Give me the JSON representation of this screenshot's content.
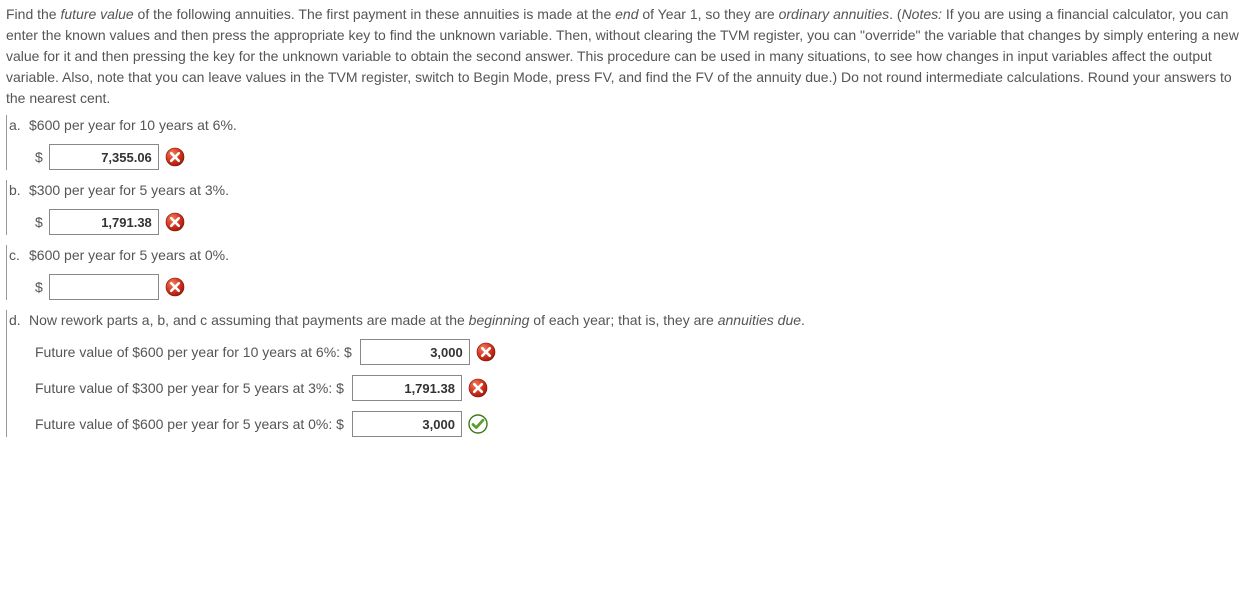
{
  "intro": {
    "seg1": "Find the ",
    "em1": "future value",
    "seg2": " of the following annuities. The first payment in these annuities is made at the ",
    "em2": "end",
    "seg3": " of Year 1, so they are ",
    "em3": "ordinary annuities",
    "seg4": ". (",
    "em_notes": "Notes:",
    "seg5": " If you are using a financial calculator, you can enter the known values and then press the appropriate key to find the unknown variable. Then, without clearing the TVM register, you can \"override\" the variable that changes by simply entering a new value for it and then pressing the key for the unknown variable to obtain the second answer. This procedure can be used in many situations, to see how changes in input variables affect the output variable. Also, note that you can leave values in the TVM register, switch to Begin Mode, press FV, and find the FV of the annuity due.) Do not round intermediate calculations. Round your answers to the nearest cent."
  },
  "questions": {
    "a": {
      "marker": "a.",
      "text": "$600 per year for 10 years at 6%.",
      "currency": "$",
      "value": "7,355.06",
      "status": "wrong"
    },
    "b": {
      "marker": "b.",
      "text": "$300 per year for 5 years at 3%.",
      "currency": "$",
      "value": "1,791.38",
      "status": "wrong"
    },
    "c": {
      "marker": "c.",
      "text": "$600 per year for 5 years at 0%.",
      "currency": "$",
      "value": "",
      "status": "wrong"
    },
    "d": {
      "marker": "d.",
      "seg1": "Now rework parts a, b, and c assuming that payments are made at the ",
      "em1": "beginning",
      "seg2": " of each year; that is, they are ",
      "em2": "annuities due",
      "seg3": ".",
      "rows": [
        {
          "label": "Future value of $600 per year for 10 years at 6%: $",
          "value": "3,000",
          "status": "wrong"
        },
        {
          "label": "Future value of $300 per year for 5 years at 3%: $",
          "value": "1,791.38",
          "status": "wrong"
        },
        {
          "label": "Future value of $600 per year for 5 years at 0%: $",
          "value": "3,000",
          "status": "correct"
        }
      ]
    }
  },
  "colors": {
    "wrong_fill": "#d9341f",
    "wrong_shine": "#f07e57",
    "correct_fill": "#5aa02c",
    "correct_stroke": "#3e7a1a"
  }
}
